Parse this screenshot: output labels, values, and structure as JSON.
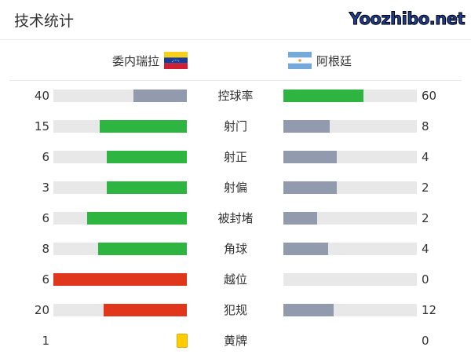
{
  "header": {
    "title": "技术统计"
  },
  "teams": {
    "home": {
      "name": "委内瑞拉",
      "flag": "venezuela-flag"
    },
    "away": {
      "name": "阿根廷",
      "flag": "argentina-flag"
    }
  },
  "colors": {
    "green": "#2db441",
    "gray": "#929bad",
    "red": "#e0361c",
    "track": "#e8e8e8",
    "yellow": "#ffcc00"
  },
  "stats": [
    {
      "label": "控球率",
      "home": "40",
      "away": "60",
      "home_fraction": 0.4,
      "away_fraction": 0.6,
      "home_color": "#929bad",
      "away_color": "#2db441"
    },
    {
      "label": "射门",
      "home": "15",
      "away": "8",
      "home_fraction": 0.652,
      "away_fraction": 0.348,
      "home_color": "#2db441",
      "away_color": "#929bad"
    },
    {
      "label": "射正",
      "home": "6",
      "away": "4",
      "home_fraction": 0.6,
      "away_fraction": 0.4,
      "home_color": "#2db441",
      "away_color": "#929bad"
    },
    {
      "label": "射偏",
      "home": "3",
      "away": "2",
      "home_fraction": 0.6,
      "away_fraction": 0.4,
      "home_color": "#2db441",
      "away_color": "#929bad"
    },
    {
      "label": "被封堵",
      "home": "6",
      "away": "2",
      "home_fraction": 0.75,
      "away_fraction": 0.25,
      "home_color": "#2db441",
      "away_color": "#929bad"
    },
    {
      "label": "角球",
      "home": "8",
      "away": "4",
      "home_fraction": 0.667,
      "away_fraction": 0.333,
      "home_color": "#2db441",
      "away_color": "#929bad"
    },
    {
      "label": "越位",
      "home": "6",
      "away": "0",
      "home_fraction": 1.0,
      "away_fraction": 0,
      "home_color": "#e0361c",
      "away_color": "#929bad"
    },
    {
      "label": "犯规",
      "home": "20",
      "away": "12",
      "home_fraction": 0.625,
      "away_fraction": 0.375,
      "home_color": "#e0361c",
      "away_color": "#929bad"
    }
  ],
  "yellow_cards": {
    "label": "黄牌",
    "home": "1",
    "away": "0"
  },
  "watermark": "Yoozhibo.net"
}
